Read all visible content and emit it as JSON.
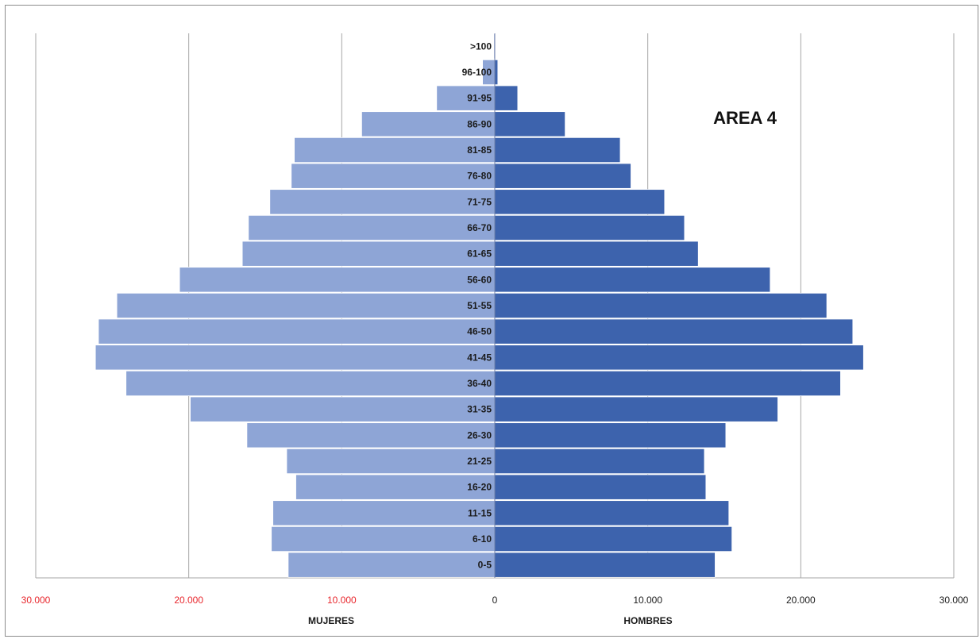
{
  "chart_data": {
    "type": "bar",
    "orientation": "horizontal",
    "layout": "population-pyramid",
    "title": "AREA 4",
    "categories": [
      "0-5",
      "6-10",
      "11-15",
      "16-20",
      "21-25",
      "26-30",
      "31-35",
      "36-40",
      "41-45",
      "46-50",
      "51-55",
      "56-60",
      "61-65",
      "66-70",
      "71-75",
      "76-80",
      "81-85",
      "86-90",
      "91-95",
      "96-100",
      ">100"
    ],
    "series": [
      {
        "name": "MUJERES",
        "side": "left",
        "color": "#8ea5d6",
        "values": [
          13500,
          14600,
          14500,
          13000,
          13600,
          16200,
          19900,
          24100,
          26100,
          25900,
          24700,
          20600,
          16500,
          16100,
          14700,
          13300,
          13100,
          8700,
          3800,
          800,
          60
        ]
      },
      {
        "name": "HOMBRES",
        "side": "right",
        "color": "#3d63ad",
        "values": [
          14400,
          15500,
          15300,
          13800,
          13700,
          15100,
          18500,
          22600,
          24100,
          23400,
          21700,
          18000,
          13300,
          12400,
          11100,
          8900,
          8200,
          4600,
          1500,
          200,
          20
        ]
      }
    ],
    "xlim": [
      -30000,
      30000
    ],
    "xtick_values": [
      -30000,
      -20000,
      -10000,
      0,
      10000,
      20000,
      30000
    ],
    "xtick_labels": [
      "30.000",
      "20.000",
      "10.000",
      "0",
      "10.000",
      "20.000",
      "30.000"
    ],
    "xtick_colors": [
      "#e8262c",
      "#e8262c",
      "#e8262c",
      "#1a1a1a",
      "#1a1a1a",
      "#1a1a1a",
      "#1a1a1a"
    ],
    "xlabel_left": "MUJERES",
    "xlabel_right": "HOMBRES",
    "grid": "vertical",
    "grid_color": "#a6a6a6"
  }
}
